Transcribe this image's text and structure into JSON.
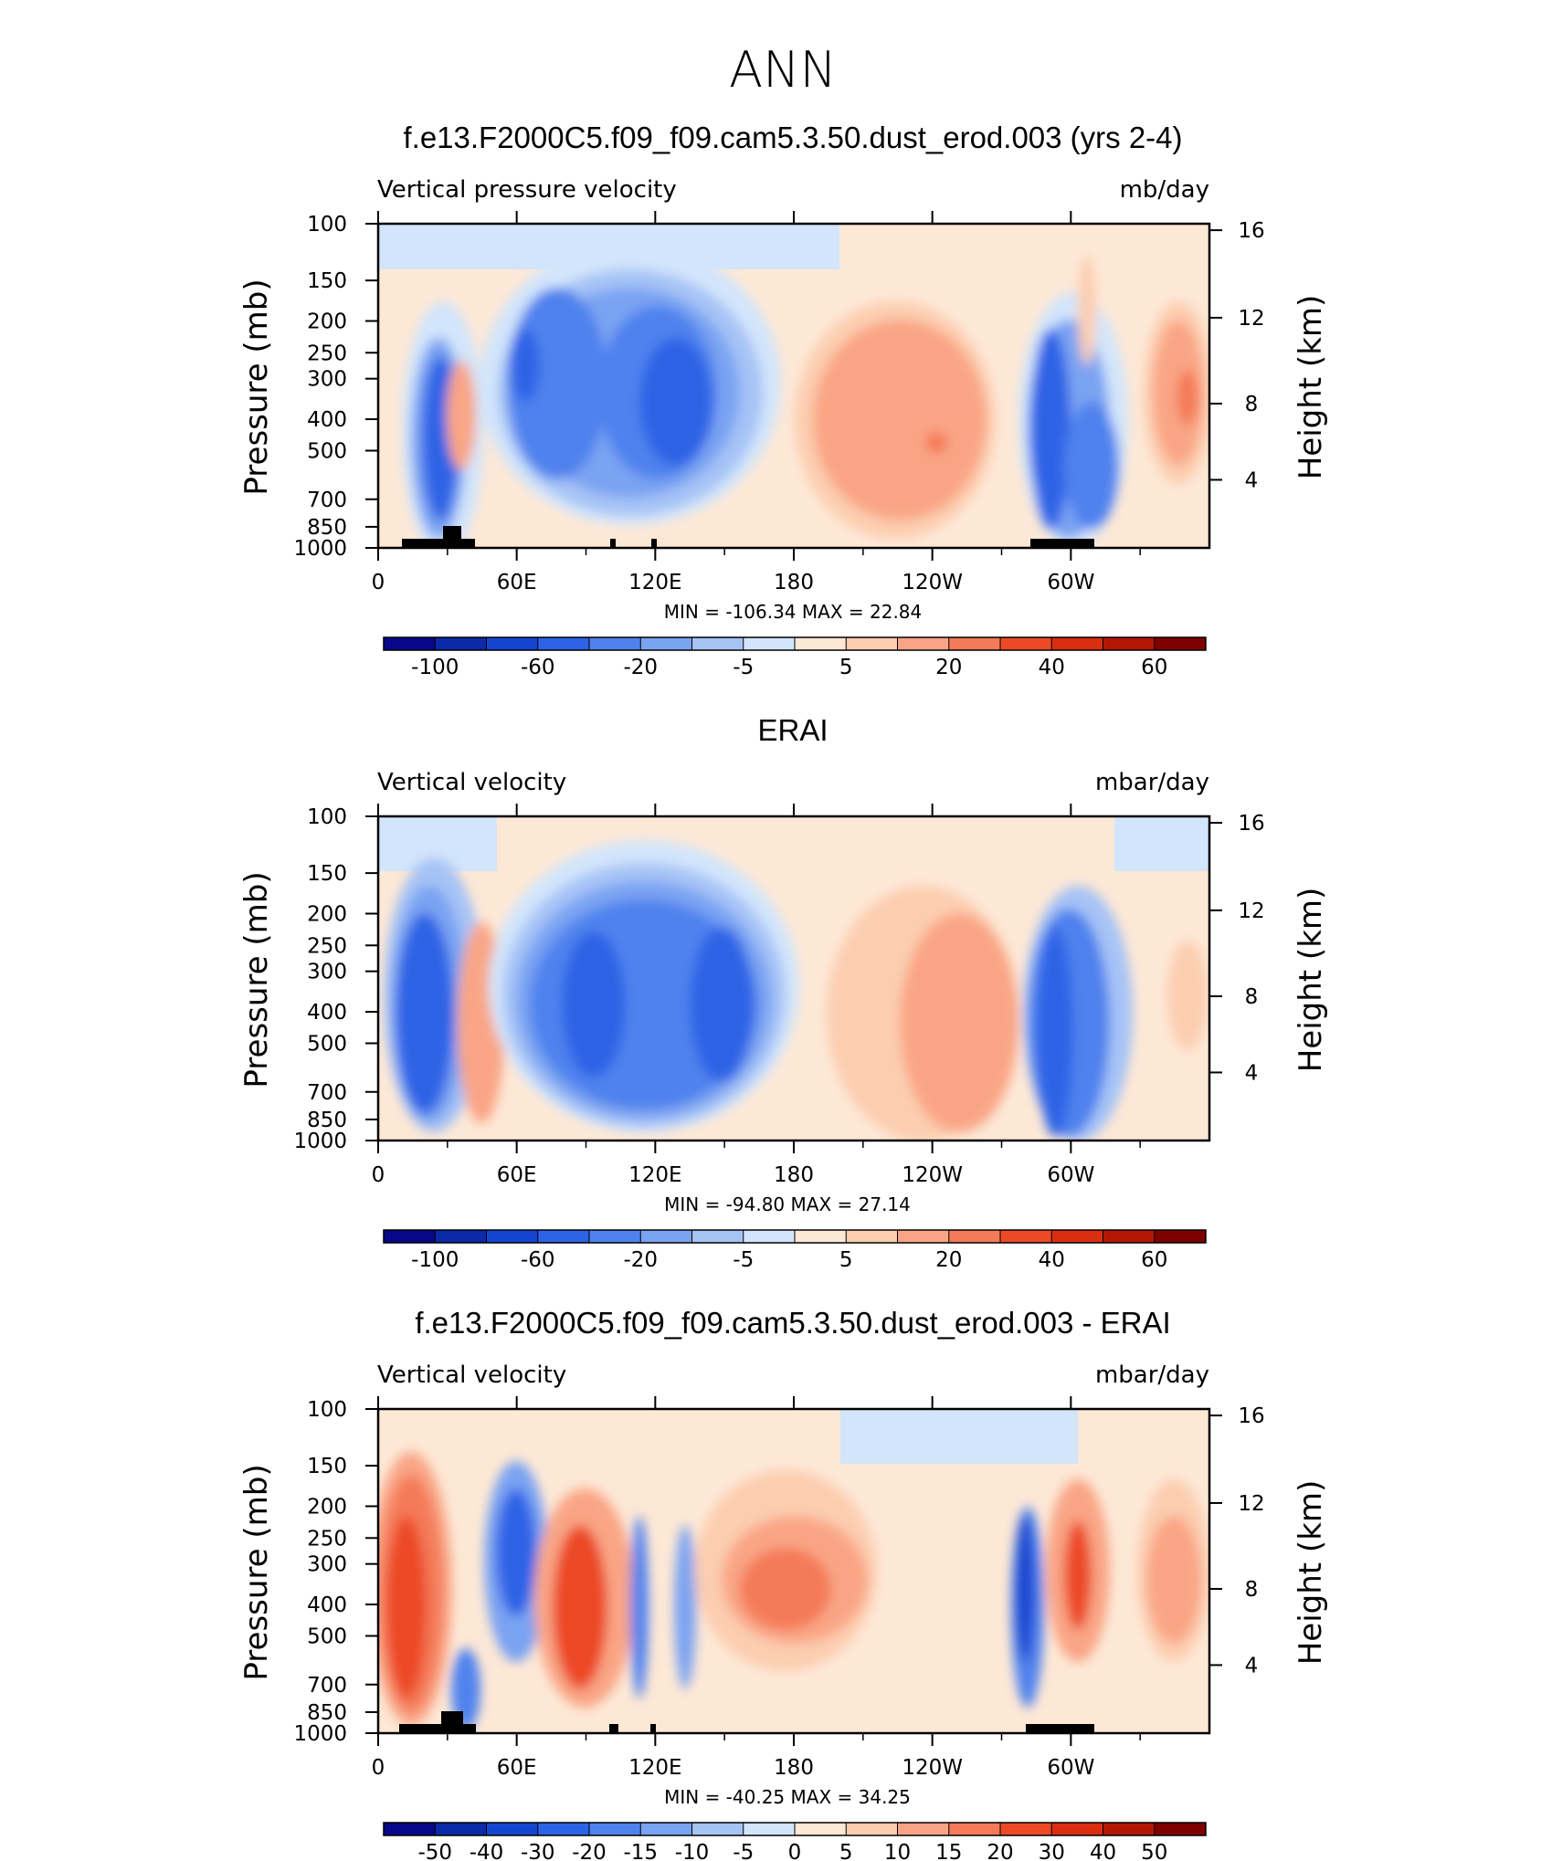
{
  "suptitle": "ANN",
  "colors": {
    "seq_main": [
      "#08088a",
      "#0a2aa8",
      "#1545d0",
      "#2d63e6",
      "#4f82ee",
      "#7aa3f2",
      "#a6c3f6",
      "#d2e5fb",
      "#fde8d6",
      "#fccdb0",
      "#f9a585",
      "#f47a58",
      "#ec4a27",
      "#d92e0f",
      "#b31807",
      "#7f0000"
    ],
    "seq_diff": [
      "#08088a",
      "#0a2aa8",
      "#1545d0",
      "#2d63e6",
      "#4f82ee",
      "#7aa3f2",
      "#a6c3f6",
      "#d2e5fb",
      "#fde8d6",
      "#fccdb0",
      "#f9a585",
      "#f47a58",
      "#ec4a27",
      "#d92e0f",
      "#b31807",
      "#7f0000"
    ]
  },
  "panels": [
    {
      "title": "f.e13.F2000C5.f09_f09.cam5.3.50.dust_erod.003 (yrs 2-4)",
      "left_label": "Vertical pressure velocity",
      "right_label": "mb/day",
      "ylabel_left": "Pressure (mb)",
      "ylabel_right": "Height (km)",
      "minmax": "MIN = -106.34   MAX =  22.84",
      "cbar_labels": [
        "-100",
        "-60",
        "-20",
        "-5",
        "5",
        "20",
        "40",
        "60"
      ]
    },
    {
      "title": "ERAI",
      "left_label": "Vertical velocity",
      "right_label": "mbar/day",
      "ylabel_left": "Pressure (mb)",
      "ylabel_right": "Height (km)",
      "minmax": "MIN = -94.80   MAX =  27.14",
      "cbar_labels": [
        "-100",
        "-60",
        "-20",
        "-5",
        "5",
        "20",
        "40",
        "60"
      ]
    },
    {
      "title": "f.e13.F2000C5.f09_f09.cam5.3.50.dust_erod.003 - ERAI",
      "left_label": "Vertical velocity",
      "right_label": "mbar/day",
      "ylabel_left": "Pressure (mb)",
      "ylabel_right": "Height (km)",
      "minmax": "MIN = -40.25   MAX =  34.25",
      "cbar_labels": [
        "-50",
        "-40",
        "-30",
        "-20",
        "-15",
        "-10",
        "-5",
        "0",
        "5",
        "10",
        "15",
        "20",
        "30",
        "40",
        "50"
      ]
    }
  ],
  "chart_data": [
    {
      "type": "heatmap",
      "title": "f.e13.F2000C5.f09_f09.cam5.3.50.dust_erod.003 (yrs 2-4)",
      "variable": "Vertical pressure velocity",
      "units": "mb/day",
      "x_ticks": [
        "0",
        "60E",
        "120E",
        "180",
        "120W",
        "60W"
      ],
      "y_ticks_pressure": [
        "100",
        "150",
        "200",
        "250",
        "300",
        "400",
        "500",
        "700",
        "850",
        "1000"
      ],
      "y_ticks_height": [
        "16",
        "12",
        "8",
        "4"
      ],
      "ylim_pressure": [
        1000,
        100
      ],
      "min": -106.34,
      "max": 22.84,
      "contour_levels": [
        -100,
        -80,
        -60,
        -40,
        -20,
        -10,
        -5,
        0,
        5,
        10,
        20,
        30,
        40,
        50,
        60
      ],
      "features": [
        {
          "lon": 35,
          "p": 400,
          "value": -60
        },
        {
          "lon": 75,
          "p": 300,
          "value": -60
        },
        {
          "lon": 140,
          "p": 350,
          "value": -100
        },
        {
          "lon": 240,
          "p": 450,
          "value": 22
        },
        {
          "lon": 285,
          "p": 400,
          "value": -60
        },
        {
          "lon": 355,
          "p": 300,
          "value": 20
        }
      ]
    },
    {
      "type": "heatmap",
      "title": "ERAI",
      "variable": "Vertical velocity",
      "units": "mbar/day",
      "x_ticks": [
        "0",
        "60E",
        "120E",
        "180",
        "120W",
        "60W"
      ],
      "y_ticks_pressure": [
        "100",
        "150",
        "200",
        "250",
        "300",
        "400",
        "500",
        "700",
        "850",
        "1000"
      ],
      "y_ticks_height": [
        "16",
        "12",
        "8",
        "4"
      ],
      "ylim_pressure": [
        1000,
        100
      ],
      "min": -94.8,
      "max": 27.14,
      "contour_levels": [
        -100,
        -80,
        -60,
        -40,
        -20,
        -10,
        -5,
        0,
        5,
        10,
        20,
        30,
        40,
        50,
        60
      ],
      "features": [
        {
          "lon": 25,
          "p": 400,
          "value": -60
        },
        {
          "lon": 50,
          "p": 400,
          "value": 20
        },
        {
          "lon": 100,
          "p": 400,
          "value": -60
        },
        {
          "lon": 150,
          "p": 400,
          "value": -60
        },
        {
          "lon": 235,
          "p": 450,
          "value": 20
        },
        {
          "lon": 290,
          "p": 500,
          "value": -60
        }
      ]
    },
    {
      "type": "heatmap",
      "title": "f.e13.F2000C5.f09_f09.cam5.3.50.dust_erod.003 - ERAI",
      "variable": "Vertical velocity",
      "units": "mbar/day",
      "x_ticks": [
        "0",
        "60E",
        "120E",
        "180",
        "120W",
        "60W"
      ],
      "y_ticks_pressure": [
        "100",
        "150",
        "200",
        "250",
        "300",
        "400",
        "500",
        "700",
        "850",
        "1000"
      ],
      "y_ticks_height": [
        "16",
        "12",
        "8",
        "4"
      ],
      "ylim_pressure": [
        1000,
        100
      ],
      "min": -40.25,
      "max": 34.25,
      "contour_levels": [
        -50,
        -40,
        -30,
        -20,
        -15,
        -10,
        -5,
        0,
        5,
        10,
        15,
        20,
        30,
        40,
        50
      ],
      "features": [
        {
          "lon": 15,
          "p": 350,
          "value": 30
        },
        {
          "lon": 60,
          "p": 300,
          "value": -40
        },
        {
          "lon": 90,
          "p": 400,
          "value": 30
        },
        {
          "lon": 175,
          "p": 350,
          "value": 20
        },
        {
          "lon": 280,
          "p": 400,
          "value": -40
        },
        {
          "lon": 300,
          "p": 350,
          "value": 20
        },
        {
          "lon": 350,
          "p": 400,
          "value": 10
        }
      ]
    }
  ]
}
